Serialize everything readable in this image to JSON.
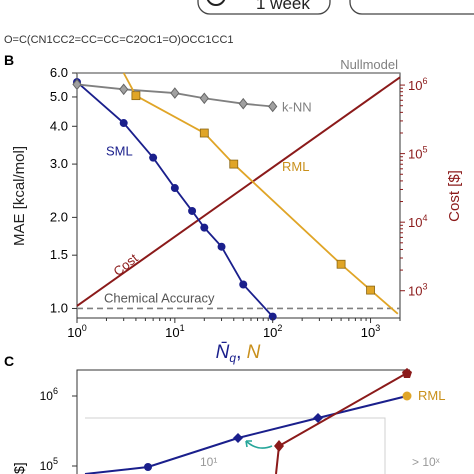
{
  "top_strip": {
    "smiles": "O=C(CN1CC2=CC=CC=C2OC1=O)OCC1CC1",
    "box_label": "1 week",
    "box_icon": "clock-icon"
  },
  "panel_b": {
    "label": "B",
    "chart_data": {
      "type": "line",
      "xscale": "log",
      "xlim": [
        1,
        2000
      ],
      "xticks": [
        {
          "v": 1,
          "base": "10",
          "exp": "0"
        },
        {
          "v": 10,
          "base": "10",
          "exp": "1"
        },
        {
          "v": 100,
          "base": "10",
          "exp": "2"
        },
        {
          "v": 1000,
          "base": "10",
          "exp": "3"
        }
      ],
      "y_left": {
        "label": "MAE [kcal/mol]",
        "scale": "log",
        "lim": [
          0.93,
          6.0
        ],
        "ticks": [
          "1.0",
          "1.5",
          "2.0",
          "3.0",
          "4.0",
          "5.0",
          "6.0"
        ]
      },
      "y_right": {
        "label": "Cost [$]",
        "scale": "log",
        "lim": [
          400,
          1500000
        ],
        "ticks": [
          {
            "v": 1000,
            "base": "10",
            "exp": "3"
          },
          {
            "v": 10000,
            "base": "10",
            "exp": "4"
          },
          {
            "v": 100000,
            "base": "10",
            "exp": "5"
          },
          {
            "v": 1000000,
            "base": "10",
            "exp": "6"
          }
        ],
        "color": "#8b1a1a"
      },
      "xlabel": {
        "main": "N̄",
        "sub": "q",
        "sep": ", ",
        "second": "N"
      },
      "series": [
        {
          "name": "SML",
          "color": "#1a1f8c",
          "marker": "circle",
          "x": [
            1,
            3,
            6,
            10,
            15,
            20,
            30,
            50,
            100
          ],
          "y": [
            5.6,
            4.1,
            3.15,
            2.5,
            2.1,
            1.85,
            1.6,
            1.2,
            0.94
          ]
        },
        {
          "name": "k-NN",
          "color": "#808080",
          "marker": "diamond",
          "x": [
            1,
            3,
            10,
            20,
            50,
            100
          ],
          "y": [
            5.5,
            5.3,
            5.15,
            4.95,
            4.75,
            4.65
          ]
        },
        {
          "name": "RML",
          "color": "#e0a527",
          "marker": "square",
          "x": [
            4,
            20,
            40,
            500,
            1000
          ],
          "y": [
            5.05,
            3.8,
            3.0,
            1.4,
            1.15
          ]
        }
      ],
      "rml_line_start": [
        3,
        6.0
      ],
      "rml_line_end": [
        1900,
        0.96
      ],
      "cost_line": {
        "name": "Cost",
        "color": "#8b1a1a",
        "x": [
          1,
          2000
        ],
        "cost": [
          600,
          1300000
        ]
      },
      "reference_lines": [
        {
          "name": "Nullmodel",
          "y": 6.0,
          "color": "#808080",
          "style": "solid"
        },
        {
          "name": "Chemical Accuracy",
          "y": 1.0,
          "color": "#808080",
          "style": "dashed"
        }
      ]
    }
  },
  "panel_c": {
    "label": "C",
    "chart_data": {
      "type": "line",
      "yscale": "log",
      "yticks": [
        {
          "v": 100000,
          "base": "10",
          "exp": "5"
        },
        {
          "v": 1000000,
          "base": "10",
          "exp": "6"
        }
      ],
      "ylabel_fragment": "$]",
      "series": [
        {
          "name": "",
          "color": "#1a1f8c",
          "marker": "diamond"
        },
        {
          "name": "RML",
          "color": "#e0a527",
          "marker": "circle"
        },
        {
          "name": "",
          "color": "#8b1a1a",
          "marker": "pentagon"
        }
      ],
      "annotations": [
        "10¹",
        "> 10ˣ"
      ]
    }
  }
}
